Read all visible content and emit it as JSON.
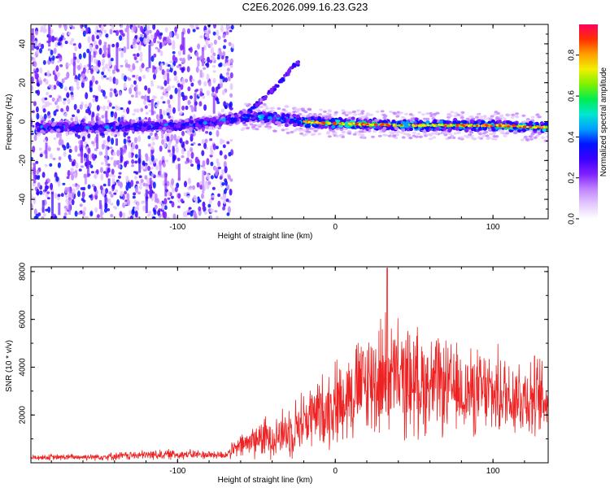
{
  "title": "C2E6.2026.099.16.23.G23",
  "chart_data": [
    {
      "type": "heatmap",
      "panel": "top",
      "xlabel": "Height of straight line (km)",
      "ylabel": "Frequency (Hz)",
      "xlim": [
        -193,
        135
      ],
      "ylim": [
        -50,
        50
      ],
      "xticks": [
        -100,
        0,
        100
      ],
      "yticks": [
        -40,
        -20,
        0,
        20,
        40
      ],
      "colorbar": {
        "label": "Normalized spectral amplitude",
        "ticks": [
          0.0,
          0.2,
          0.4,
          0.6,
          0.8
        ],
        "range": [
          0,
          0.95
        ],
        "colors": [
          "#ffffff",
          "#e3c8ff",
          "#c082ff",
          "#7f1fff",
          "#3a00ff",
          "#0014ff",
          "#00a0ff",
          "#00e6d0",
          "#00ee50",
          "#7ff000",
          "#f0f000",
          "#ffa000",
          "#ff3000",
          "#ff0060"
        ]
      },
      "band_center_hz": [
        {
          "x": -190,
          "f": -3
        },
        {
          "x": -150,
          "f": -3
        },
        {
          "x": -100,
          "f": -2
        },
        {
          "x": -75,
          "f": 0
        },
        {
          "x": -55,
          "f": 3
        },
        {
          "x": -40,
          "f": 2
        },
        {
          "x": -20,
          "f": 0
        },
        {
          "x": 0,
          "f": -1
        },
        {
          "x": 50,
          "f": -2
        },
        {
          "x": 100,
          "f": -2
        },
        {
          "x": 135,
          "f": -3
        }
      ],
      "branch_hz": [
        {
          "x": -55,
          "f": 5
        },
        {
          "x": -45,
          "f": 12
        },
        {
          "x": -35,
          "f": 20
        },
        {
          "x": -25,
          "f": 30
        }
      ]
    },
    {
      "type": "line",
      "panel": "bottom",
      "xlabel": "Height of straight line (km)",
      "ylabel": "SNR (10 * v/v)",
      "xlim": [
        -193,
        135
      ],
      "ylim": [
        0,
        8200
      ],
      "xticks": [
        -100,
        0,
        100
      ],
      "yticks": [
        2000,
        4000,
        6000,
        8000
      ],
      "line_color": "#ee2222",
      "envelope": [
        {
          "x": -190,
          "mean": 220,
          "spread": 120
        },
        {
          "x": -150,
          "mean": 250,
          "spread": 150
        },
        {
          "x": -110,
          "mean": 350,
          "spread": 220
        },
        {
          "x": -90,
          "mean": 350,
          "spread": 200
        },
        {
          "x": -70,
          "mean": 320,
          "spread": 180
        },
        {
          "x": -60,
          "mean": 700,
          "spread": 500
        },
        {
          "x": -50,
          "mean": 1000,
          "spread": 800
        },
        {
          "x": -40,
          "mean": 1100,
          "spread": 900
        },
        {
          "x": -30,
          "mean": 1300,
          "spread": 1100
        },
        {
          "x": -20,
          "mean": 1800,
          "spread": 1300
        },
        {
          "x": -10,
          "mean": 2100,
          "spread": 1500
        },
        {
          "x": 0,
          "mean": 2500,
          "spread": 1800
        },
        {
          "x": 10,
          "mean": 3000,
          "spread": 2000
        },
        {
          "x": 20,
          "mean": 3300,
          "spread": 2300
        },
        {
          "x": 30,
          "mean": 3600,
          "spread": 2600
        },
        {
          "x": 40,
          "mean": 3500,
          "spread": 2400
        },
        {
          "x": 60,
          "mean": 3300,
          "spread": 2100
        },
        {
          "x": 80,
          "mean": 3000,
          "spread": 1800
        },
        {
          "x": 100,
          "mean": 2900,
          "spread": 1800
        },
        {
          "x": 120,
          "mean": 2800,
          "spread": 1800
        },
        {
          "x": 135,
          "mean": 2600,
          "spread": 1700
        }
      ],
      "peak": {
        "x": 33,
        "y": 8150
      }
    }
  ]
}
